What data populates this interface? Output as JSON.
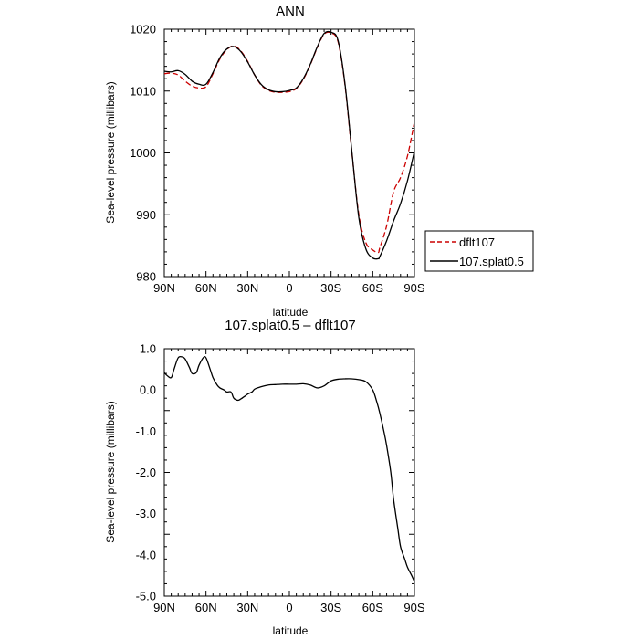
{
  "chart_data": [
    {
      "type": "line",
      "title": "ANN",
      "xlabel": "latitude",
      "ylabel": "Sea-level pressure (millibars)",
      "xlim": [
        90,
        -90
      ],
      "ylim": [
        980,
        1020
      ],
      "xticks": [
        90,
        60,
        30,
        0,
        -30,
        -60,
        -90
      ],
      "xtick_labels": [
        "90N",
        "60N",
        "30N",
        "0",
        "30S",
        "60S",
        "90S"
      ],
      "yticks": [
        980,
        990,
        1000,
        1010,
        1020
      ],
      "ytick_labels": [
        "980",
        "990",
        "1000",
        "1010",
        "1020"
      ],
      "legend_position": "right",
      "series": [
        {
          "name": "dflt107",
          "color": "#cc0000",
          "dash": "dashed",
          "x": [
            90,
            85,
            80,
            75,
            70,
            65,
            60,
            55,
            50,
            45,
            40,
            35,
            30,
            25,
            20,
            15,
            10,
            5,
            0,
            -5,
            -10,
            -15,
            -20,
            -25,
            -30,
            -35,
            -40,
            -45,
            -50,
            -55,
            -60,
            -64,
            -65,
            -70,
            -75,
            -80,
            -85,
            -90
          ],
          "y": [
            1012.8,
            1012.9,
            1012.6,
            1011.6,
            1010.8,
            1010.5,
            1010.7,
            1012.8,
            1015.2,
            1016.7,
            1017.3,
            1016.5,
            1014.8,
            1012.6,
            1010.9,
            1010.1,
            1009.8,
            1009.8,
            1009.9,
            1010.4,
            1011.9,
            1014.2,
            1017.0,
            1019.2,
            1019.4,
            1018.0,
            1011.0,
            1000.0,
            990.0,
            985.5,
            984.3,
            983.9,
            984.6,
            988.2,
            993.7,
            996.0,
            999.5,
            1005.0
          ]
        },
        {
          "name": "107.splat0.5",
          "color": "#000000",
          "dash": "solid",
          "x": [
            90,
            85,
            80,
            75,
            70,
            65,
            60,
            55,
            50,
            45,
            40,
            35,
            30,
            25,
            20,
            15,
            10,
            5,
            0,
            -5,
            -10,
            -15,
            -20,
            -25,
            -30,
            -35,
            -40,
            -45,
            -50,
            -55,
            -60,
            -64,
            -65,
            -70,
            -75,
            -80,
            -85,
            -90
          ],
          "y": [
            1013.2,
            1013.1,
            1013.3,
            1012.7,
            1011.6,
            1011.1,
            1011.1,
            1013.0,
            1015.4,
            1016.8,
            1017.2,
            1016.4,
            1014.7,
            1012.6,
            1011.0,
            1010.2,
            1009.9,
            1009.9,
            1010.1,
            1010.5,
            1012.0,
            1014.3,
            1017.1,
            1019.3,
            1019.5,
            1018.2,
            1011.2,
            1000.2,
            989.5,
            984.5,
            983.0,
            982.9,
            983.2,
            985.8,
            989.0,
            991.8,
            995.5,
            1000.3
          ]
        }
      ]
    },
    {
      "type": "line",
      "title": "107.splat0.5 – dflt107",
      "xlabel": "latitude",
      "ylabel": "Sea-level pressure (millibars)",
      "xlim": [
        90,
        -90
      ],
      "ylim": [
        -5.0,
        1.0
      ],
      "xticks": [
        90,
        60,
        30,
        0,
        -30,
        -60,
        -90
      ],
      "xtick_labels": [
        "90N",
        "60N",
        "30N",
        "0",
        "30S",
        "60S",
        "90S"
      ],
      "yticks": [
        -5,
        -4,
        -3,
        -2,
        -1,
        0,
        1
      ],
      "ytick_labels": [
        "-5.0",
        "-4.0",
        "-3.0",
        "-2.0",
        "-1.0",
        "0.0",
        "1.0"
      ],
      "series": [
        {
          "name": "",
          "color": "#000000",
          "dash": "solid",
          "x": [
            90,
            88,
            85,
            83,
            80,
            77,
            75,
            72,
            70,
            67,
            65,
            62,
            60,
            57,
            55,
            52,
            50,
            47,
            45,
            42,
            40,
            37,
            35,
            32,
            30,
            27,
            25,
            22,
            20,
            15,
            10,
            5,
            0,
            -5,
            -10,
            -15,
            -20,
            -25,
            -30,
            -35,
            -40,
            -45,
            -50,
            -55,
            -60,
            -63,
            -65,
            -68,
            -70,
            -73,
            -75,
            -78,
            -80,
            -83,
            -85,
            -88,
            -90
          ],
          "y": [
            0.42,
            0.35,
            0.3,
            0.5,
            0.78,
            0.8,
            0.75,
            0.55,
            0.4,
            0.42,
            0.6,
            0.78,
            0.78,
            0.5,
            0.3,
            0.12,
            0.05,
            0.0,
            -0.05,
            -0.05,
            -0.2,
            -0.25,
            -0.22,
            -0.15,
            -0.1,
            -0.05,
            0.02,
            0.06,
            0.08,
            0.12,
            0.13,
            0.14,
            0.14,
            0.14,
            0.15,
            0.12,
            0.05,
            0.1,
            0.22,
            0.26,
            0.27,
            0.27,
            0.25,
            0.2,
            0.0,
            -0.3,
            -0.55,
            -1.0,
            -1.35,
            -2.0,
            -2.65,
            -3.35,
            -3.8,
            -4.1,
            -4.3,
            -4.5,
            -4.65
          ]
        }
      ]
    }
  ]
}
